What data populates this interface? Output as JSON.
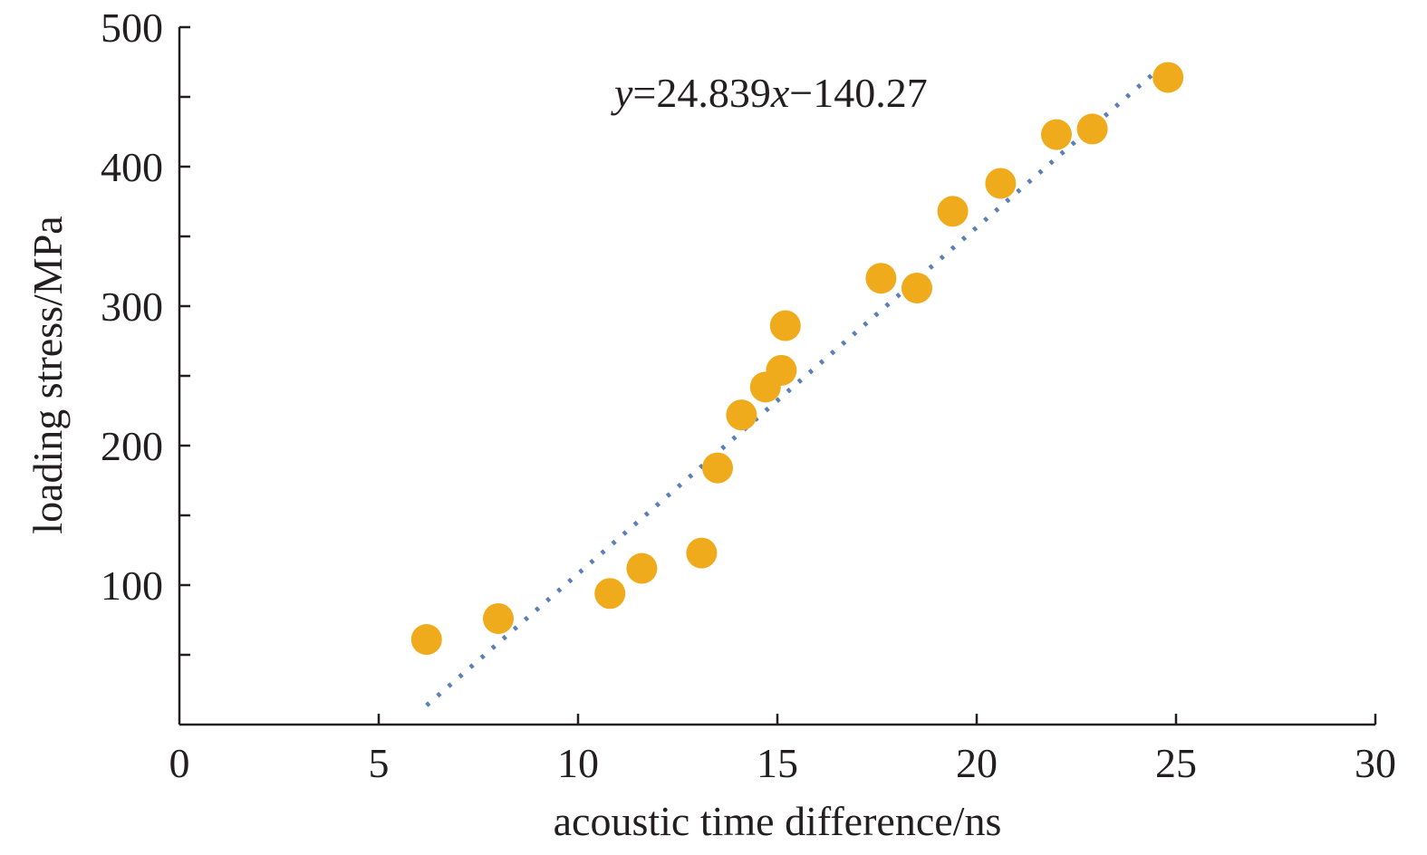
{
  "chart_data": {
    "type": "scatter",
    "title": "",
    "xlabel": "acoustic time difference/ns",
    "ylabel": "loading stress/MPa",
    "xlim": [
      0,
      30
    ],
    "ylim": [
      0,
      500
    ],
    "x_ticks": [
      0,
      5,
      10,
      15,
      20,
      25,
      30
    ],
    "y_ticks": [
      100,
      200,
      300,
      400,
      500
    ],
    "y_minor_ticks": [
      50,
      150,
      250,
      350,
      450
    ],
    "grid": false,
    "legend": "none",
    "series": [
      {
        "type": "scatter",
        "color": "#f0ab1c",
        "points": [
          {
            "x": 6.2,
            "y": 61
          },
          {
            "x": 8.0,
            "y": 76
          },
          {
            "x": 10.8,
            "y": 94
          },
          {
            "x": 11.6,
            "y": 112
          },
          {
            "x": 13.1,
            "y": 123
          },
          {
            "x": 13.5,
            "y": 184
          },
          {
            "x": 14.1,
            "y": 222
          },
          {
            "x": 14.7,
            "y": 242
          },
          {
            "x": 15.1,
            "y": 254
          },
          {
            "x": 15.2,
            "y": 286
          },
          {
            "x": 17.6,
            "y": 320
          },
          {
            "x": 18.5,
            "y": 313
          },
          {
            "x": 19.4,
            "y": 368
          },
          {
            "x": 20.6,
            "y": 388
          },
          {
            "x": 22.0,
            "y": 423
          },
          {
            "x": 22.9,
            "y": 427
          },
          {
            "x": 24.8,
            "y": 464
          }
        ]
      },
      {
        "type": "line",
        "style": "dotted",
        "color": "#4a72b0",
        "trendline": {
          "slope": 24.839,
          "intercept": -140.27
        },
        "x_range": [
          6.2,
          24.8
        ]
      }
    ],
    "annotations": [
      {
        "text_y": "y",
        "text_mid": "=24.839",
        "text_x": "x",
        "text_tail": "−140.27"
      }
    ]
  }
}
